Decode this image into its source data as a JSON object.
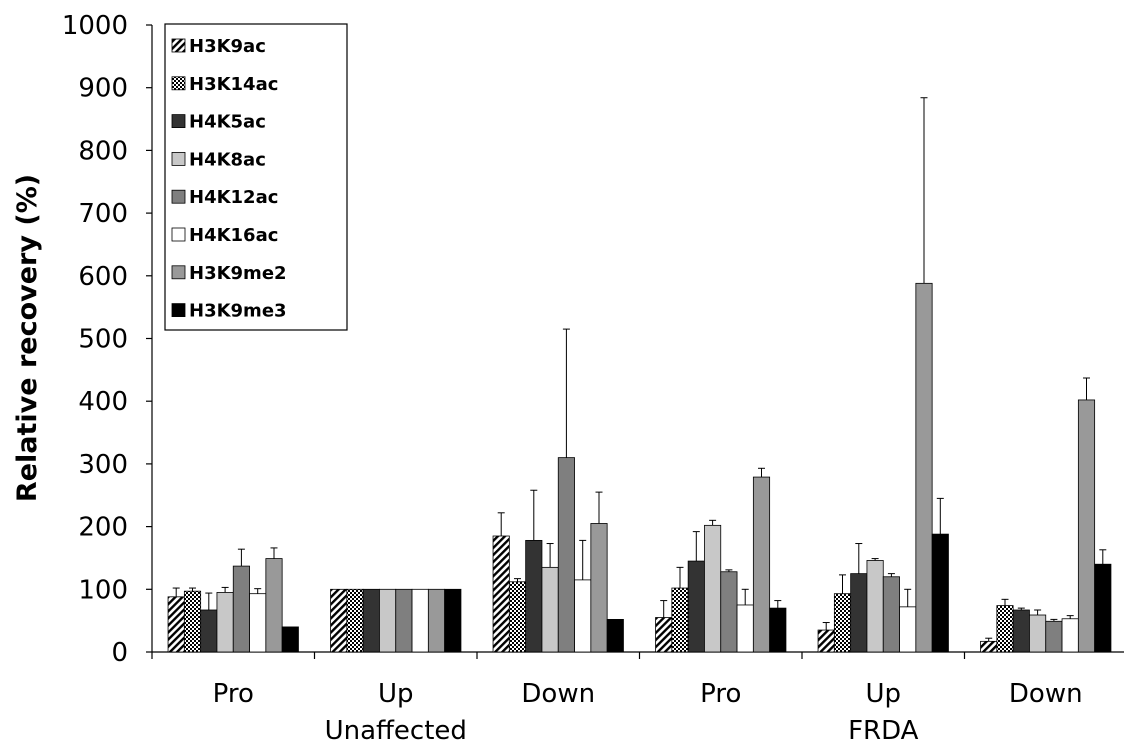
{
  "chart_data": {
    "type": "bar",
    "ylabel": "Relative recovery (%)",
    "ylim": [
      0,
      1000
    ],
    "yticks": [
      0,
      100,
      200,
      300,
      400,
      500,
      600,
      700,
      800,
      900,
      1000
    ],
    "grid": false,
    "legend_position": "top-left",
    "categories": [
      "Pro",
      "Up",
      "Down",
      "Pro",
      "Up",
      "Down"
    ],
    "groups": [
      "Unaffected",
      "FRDA"
    ],
    "series": [
      {
        "name": "H3K9ac",
        "fill": "hatch",
        "values": [
          88,
          100,
          185,
          55,
          35,
          17
        ],
        "errors": [
          14,
          0,
          37,
          27,
          12,
          5
        ]
      },
      {
        "name": "H3K14ac",
        "fill": "dots",
        "values": [
          97,
          100,
          112,
          102,
          93,
          74
        ],
        "errors": [
          5,
          0,
          5,
          33,
          30,
          10
        ]
      },
      {
        "name": "H4K5ac",
        "fill": "#333333",
        "values": [
          67,
          100,
          178,
          145,
          125,
          67
        ],
        "errors": [
          27,
          0,
          80,
          47,
          48,
          3
        ]
      },
      {
        "name": "H4K8ac",
        "fill": "#c8c8c8",
        "values": [
          95,
          100,
          135,
          202,
          146,
          59
        ],
        "errors": [
          8,
          0,
          38,
          8,
          3,
          8
        ]
      },
      {
        "name": "H4K12ac",
        "fill": "#7f7f7f",
        "values": [
          137,
          100,
          310,
          128,
          120,
          49
        ],
        "errors": [
          27,
          0,
          205,
          3,
          5,
          3
        ]
      },
      {
        "name": "H4K16ac",
        "fill": "#ffffff",
        "values": [
          93,
          100,
          115,
          75,
          72,
          53
        ],
        "errors": [
          8,
          0,
          63,
          25,
          28,
          5
        ]
      },
      {
        "name": "H3K9me2",
        "fill": "#999999",
        "values": [
          149,
          100,
          205,
          279,
          588,
          402
        ],
        "errors": [
          17,
          0,
          50,
          14,
          296,
          35
        ]
      },
      {
        "name": "H3K9me3",
        "fill": "#000000",
        "values": [
          40,
          100,
          52,
          70,
          188,
          140
        ],
        "errors": [
          0,
          0,
          0,
          12,
          57,
          23
        ]
      }
    ]
  }
}
